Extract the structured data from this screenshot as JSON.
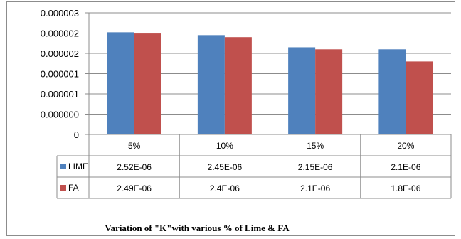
{
  "chart_data": {
    "type": "bar",
    "title": "Variation of  \"K\"with various % of Lime & FA",
    "categories": [
      "5%",
      "10%",
      "15%",
      "20%"
    ],
    "series": [
      {
        "name": "LIME",
        "color": "#4f81bd",
        "values": [
          2.52e-06,
          2.45e-06,
          2.15e-06,
          2.1e-06
        ],
        "table_labels": [
          "2.52E-06",
          "2.45E-06",
          "2.15E-06",
          "2.1E-06"
        ]
      },
      {
        "name": "FA",
        "color": "#c0504d",
        "values": [
          2.49e-06,
          2.4e-06,
          2.1e-06,
          1.8e-06
        ],
        "table_labels": [
          "2.49E-06",
          "2.4E-06",
          "2.1E-06",
          "1.8E-06"
        ]
      }
    ],
    "y_tick_labels": [
      "0",
      "0.000000",
      "0.000001",
      "0.000001",
      "0.000002",
      "0.000002",
      "0.000003"
    ],
    "ylim": [
      0,
      3e-06
    ],
    "grid": true,
    "legend": "data-table"
  }
}
